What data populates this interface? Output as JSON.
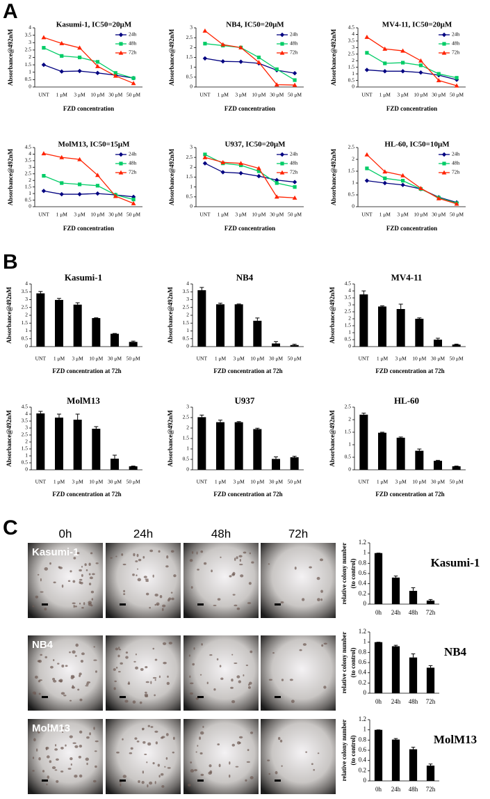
{
  "panels": [
    "A",
    "B",
    "C"
  ],
  "image_columns": [
    "0h",
    "24h",
    "48h",
    "72h"
  ],
  "image_rows": [
    "Kasumi-1",
    "NB4",
    "MolM13"
  ],
  "chart_data": [
    {
      "type": "line",
      "title": "Kasumi-1, IC50=20μM",
      "xlabel": "FZD concentration",
      "ylabel": "Absorbance@492nM",
      "categories": [
        "UNT",
        "1 μM",
        "3 μM",
        "10 μM",
        "30 μM",
        "50 μM"
      ],
      "ylim": [
        0,
        4
      ],
      "yticks": [
        0,
        0.5,
        1,
        1.5,
        2,
        2.5,
        3,
        3.5,
        4
      ],
      "series": [
        {
          "name": "24h",
          "color": "#000080",
          "values": [
            1.5,
            1.05,
            1.08,
            0.95,
            0.8,
            0.6
          ]
        },
        {
          "name": "48h",
          "color": "#00cc66",
          "values": [
            2.65,
            2.1,
            2.0,
            1.7,
            0.95,
            0.6
          ]
        },
        {
          "name": "72h",
          "color": "#ff2200",
          "values": [
            3.35,
            2.95,
            2.65,
            1.4,
            0.75,
            0.25
          ]
        }
      ]
    },
    {
      "type": "line",
      "title": "NB4, IC50=20μM",
      "xlabel": "FZD concentration",
      "ylabel": "Absorbance@492nM",
      "categories": [
        "UNT",
        "1 μM",
        "3 μM",
        "10 μM",
        "30 μM",
        "50 μM"
      ],
      "ylim": [
        0,
        3
      ],
      "yticks": [
        0,
        0.5,
        1,
        1.5,
        2,
        2.5,
        3
      ],
      "series": [
        {
          "name": "24h",
          "color": "#000080",
          "values": [
            1.45,
            1.3,
            1.28,
            1.2,
            0.85,
            0.7
          ]
        },
        {
          "name": "48h",
          "color": "#00cc66",
          "values": [
            2.2,
            2.1,
            2.0,
            1.5,
            0.9,
            0.35
          ]
        },
        {
          "name": "72h",
          "color": "#ff2200",
          "values": [
            2.85,
            2.15,
            2.0,
            1.25,
            0.12,
            0.1
          ]
        }
      ]
    },
    {
      "type": "line",
      "title": "MV4-11, IC50=20μM",
      "xlabel": "FZD concentration",
      "ylabel": "Absorbance@492nM",
      "categories": [
        "UNT",
        "1 μM",
        "3 μM",
        "10 μM",
        "30 μM",
        "50 μM"
      ],
      "ylim": [
        0,
        4.5
      ],
      "yticks": [
        0,
        0.5,
        1,
        1.5,
        2,
        2.5,
        3,
        3.5,
        4,
        4.5
      ],
      "series": [
        {
          "name": "24h",
          "color": "#000080",
          "values": [
            1.3,
            1.2,
            1.2,
            1.1,
            0.9,
            0.55
          ]
        },
        {
          "name": "48h",
          "color": "#00cc66",
          "values": [
            2.6,
            1.8,
            1.85,
            1.65,
            1.0,
            0.7
          ]
        },
        {
          "name": "72h",
          "color": "#ff2200",
          "values": [
            3.8,
            2.9,
            2.75,
            2.0,
            0.5,
            0.1
          ]
        }
      ]
    },
    {
      "type": "line",
      "title": "MolM13, IC50=15μM",
      "xlabel": "FZD concentration",
      "ylabel": "Absorbance@492nM",
      "categories": [
        "UNT",
        "1 μM",
        "3 μM",
        "10 μM",
        "30 μM",
        "50 μM"
      ],
      "ylim": [
        0,
        4.5
      ],
      "yticks": [
        0,
        0.5,
        1,
        1.5,
        2,
        2.5,
        3,
        3.5,
        4,
        4.5
      ],
      "series": [
        {
          "name": "24h",
          "color": "#000080",
          "values": [
            1.2,
            0.95,
            0.95,
            1.0,
            0.9,
            0.75
          ]
        },
        {
          "name": "48h",
          "color": "#00cc66",
          "values": [
            2.35,
            1.8,
            1.7,
            1.6,
            0.9,
            0.55
          ]
        },
        {
          "name": "72h",
          "color": "#ff2200",
          "values": [
            4.05,
            3.75,
            3.6,
            2.4,
            0.8,
            0.25
          ]
        }
      ]
    },
    {
      "type": "line",
      "title": "U937, IC50=20μM",
      "xlabel": "FZD concentration",
      "ylabel": "Absorbance@492nM",
      "categories": [
        "UNT",
        "1 μM",
        "3 μM",
        "10 μM",
        "30 μM",
        "50 μM"
      ],
      "ylim": [
        0,
        3
      ],
      "yticks": [
        0,
        0.5,
        1,
        1.5,
        2,
        2.5,
        3
      ],
      "series": [
        {
          "name": "24h",
          "color": "#000080",
          "values": [
            2.2,
            1.75,
            1.7,
            1.55,
            1.35,
            1.25
          ]
        },
        {
          "name": "48h",
          "color": "#00cc66",
          "values": [
            2.65,
            2.2,
            2.1,
            1.8,
            1.2,
            1.0
          ]
        },
        {
          "name": "72h",
          "color": "#ff2200",
          "values": [
            2.5,
            2.25,
            2.2,
            1.95,
            0.5,
            0.45
          ]
        }
      ]
    },
    {
      "type": "line",
      "title": "HL-60, IC50=10μM",
      "xlabel": "FZD concentration",
      "ylabel": "Absorbance@492nM",
      "categories": [
        "UNT",
        "1 μM",
        "3 μM",
        "10 μM",
        "30 μM",
        "50 μM"
      ],
      "ylim": [
        0,
        2.5
      ],
      "yticks": [
        0,
        0.5,
        1,
        1.5,
        2,
        2.5
      ],
      "series": [
        {
          "name": "24h",
          "color": "#000080",
          "values": [
            1.1,
            1.0,
            0.92,
            0.75,
            0.4,
            0.18
          ]
        },
        {
          "name": "48h",
          "color": "#00cc66",
          "values": [
            1.62,
            1.2,
            1.1,
            0.75,
            0.38,
            0.15
          ]
        },
        {
          "name": "72h",
          "color": "#ff2200",
          "values": [
            2.2,
            1.48,
            1.32,
            0.78,
            0.35,
            0.12
          ]
        }
      ]
    },
    {
      "type": "bar",
      "title": "Kasumi-1",
      "xlabel": "FZD concentration at 72h",
      "ylabel": "Absorbance@492nM",
      "color": "#000000",
      "categories": [
        "UNT",
        "1 μM",
        "3 μM",
        "10 μM",
        "30 μM",
        "50 μM"
      ],
      "ylim": [
        0,
        4
      ],
      "yticks": [
        0,
        0.5,
        1,
        1.5,
        2,
        2.5,
        3,
        3.5,
        4
      ],
      "values": [
        3.4,
        2.98,
        2.68,
        1.82,
        0.82,
        0.3
      ],
      "errors": [
        0.12,
        0.1,
        0.12,
        0.02,
        0.02,
        0.05
      ]
    },
    {
      "type": "bar",
      "title": "NB4",
      "xlabel": "FZD concentration at 72h",
      "ylabel": "Absorbance@492nM",
      "color": "#000000",
      "categories": [
        "UNT",
        "1 μM",
        "3 μM",
        "10 μM",
        "30 μM",
        "50 μM"
      ],
      "ylim": [
        0,
        4
      ],
      "yticks": [
        0,
        0.5,
        1,
        1.5,
        2,
        2.5,
        3,
        3.5,
        4
      ],
      "values": [
        3.6,
        2.7,
        2.7,
        1.65,
        0.2,
        0.1
      ],
      "errors": [
        0.18,
        0.07,
        0.02,
        0.18,
        0.12,
        0.05
      ]
    },
    {
      "type": "bar",
      "title": "MV4-11",
      "xlabel": "FZD concentration at 72h",
      "ylabel": "Absorbance@492nM",
      "color": "#000000",
      "categories": [
        "UNT",
        "1 μM",
        "3 μM",
        "10 μM",
        "30 μM",
        "50 μM"
      ],
      "ylim": [
        0,
        4.5
      ],
      "yticks": [
        0,
        0.5,
        1,
        1.5,
        2,
        2.5,
        3,
        3.5,
        4,
        4.5
      ],
      "values": [
        3.75,
        2.88,
        2.7,
        2.0,
        0.5,
        0.15
      ],
      "errors": [
        0.25,
        0.05,
        0.35,
        0.06,
        0.1,
        0.03
      ]
    },
    {
      "type": "bar",
      "title": "MolM13",
      "xlabel": "FZD concentration at 72h",
      "ylabel": "Absorbance@492nM",
      "color": "#000000",
      "categories": [
        "UNT",
        "1 μM",
        "3 μM",
        "10 μM",
        "30 μM",
        "50 μM"
      ],
      "ylim": [
        0,
        4.5
      ],
      "yticks": [
        0,
        0.5,
        1,
        1.5,
        2,
        2.5,
        3,
        3.5,
        4,
        4.5
      ],
      "values": [
        4.05,
        3.75,
        3.6,
        2.95,
        0.8,
        0.25
      ],
      "errors": [
        0.15,
        0.25,
        0.4,
        0.15,
        0.25,
        0.02
      ]
    },
    {
      "type": "bar",
      "title": "U937",
      "xlabel": "FZD concentration at 72h",
      "ylabel": "Absorbance@492nM",
      "color": "#000000",
      "categories": [
        "UNT",
        "1 μM",
        "3 μM",
        "10 μM",
        "30 μM",
        "50 μM"
      ],
      "ylim": [
        0,
        3
      ],
      "yticks": [
        0,
        0.5,
        1,
        1.5,
        2,
        2.5,
        3
      ],
      "values": [
        2.52,
        2.28,
        2.28,
        1.95,
        0.52,
        0.6
      ],
      "errors": [
        0.1,
        0.1,
        0.03,
        0.04,
        0.1,
        0.05
      ]
    },
    {
      "type": "bar",
      "title": "HL-60",
      "xlabel": "FZD concentration at 72h",
      "ylabel": "Absorbance@492nM",
      "color": "#000000",
      "categories": [
        "UNT",
        "1 μM",
        "3 μM",
        "10 μM",
        "30 μM",
        "50 μM"
      ],
      "ylim": [
        0,
        2.5
      ],
      "yticks": [
        0,
        0.5,
        1,
        1.5,
        2,
        2.5
      ],
      "values": [
        2.2,
        1.48,
        1.28,
        0.76,
        0.36,
        0.14
      ],
      "errors": [
        0.06,
        0.02,
        0.03,
        0.07,
        0.02,
        0.01
      ]
    },
    {
      "type": "bar",
      "title": "Kasumi-1",
      "ylabel": [
        "relative colony number",
        "(to control)"
      ],
      "color": "#000000",
      "categories": [
        "0h",
        "24h",
        "48h",
        "72h"
      ],
      "ylim": [
        0,
        1.2
      ],
      "yticks": [
        0,
        0.2,
        0.4,
        0.6,
        0.8,
        1,
        1.2
      ],
      "values": [
        1,
        0.52,
        0.26,
        0.07
      ],
      "errors": [
        0,
        0.03,
        0.06,
        0.02
      ]
    },
    {
      "type": "bar",
      "title": "NB4",
      "ylabel": [
        "relative colony number",
        "(to control)"
      ],
      "color": "#000000",
      "categories": [
        "0h",
        "24h",
        "48h",
        "72h"
      ],
      "ylim": [
        0,
        1.2
      ],
      "yticks": [
        0,
        0.2,
        0.4,
        0.6,
        0.8,
        1,
        1.2
      ],
      "values": [
        1,
        0.92,
        0.7,
        0.5
      ],
      "errors": [
        0,
        0.02,
        0.07,
        0.04
      ]
    },
    {
      "type": "bar",
      "title": "MolM13",
      "ylabel": [
        "relative colony number",
        "(to control)"
      ],
      "color": "#000000",
      "categories": [
        "0h",
        "24h",
        "48h",
        "72h"
      ],
      "ylim": [
        0,
        1.2
      ],
      "yticks": [
        0,
        0.2,
        0.4,
        0.6,
        0.8,
        1,
        1.2
      ],
      "values": [
        1,
        0.81,
        0.62,
        0.3
      ],
      "errors": [
        0,
        0.02,
        0.04,
        0.03
      ]
    }
  ]
}
